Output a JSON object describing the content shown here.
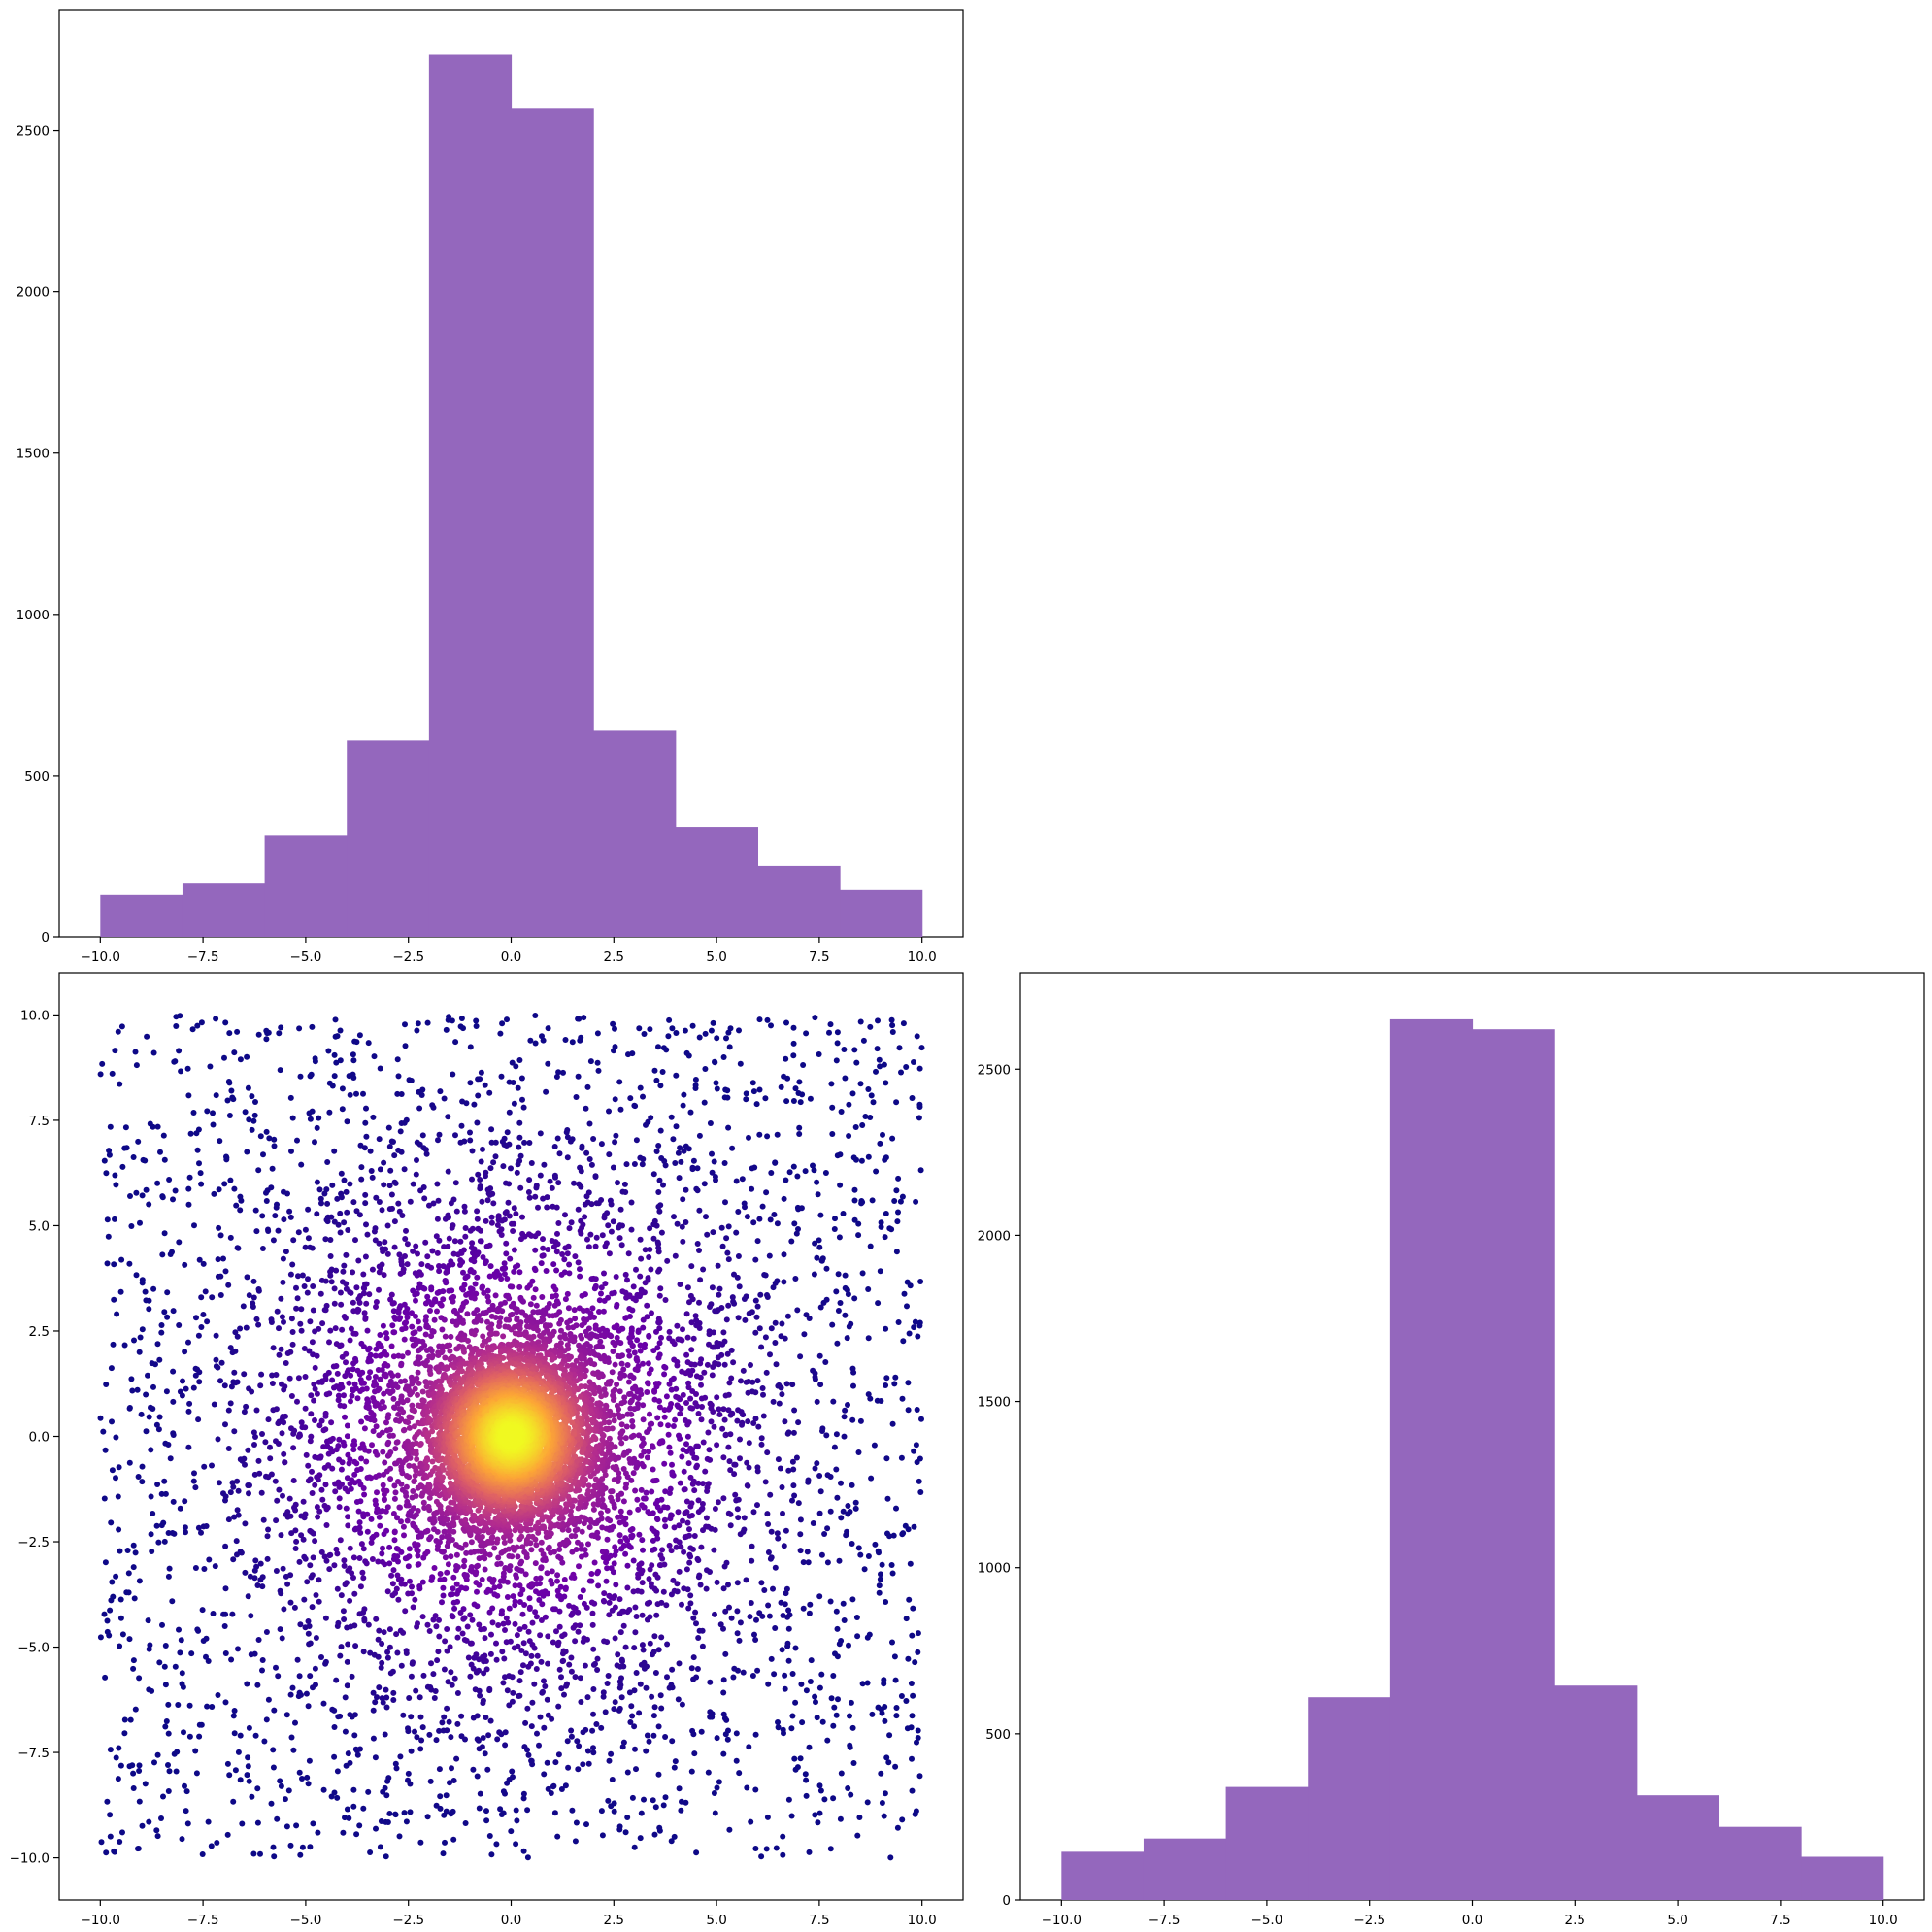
{
  "chart_data": [
    {
      "id": "hist_x",
      "type": "bar",
      "title": "",
      "xlabel": "",
      "ylabel": "",
      "bin_edges": [
        -10,
        -8,
        -6,
        -4,
        -2,
        0,
        2,
        4,
        6,
        8,
        10
      ],
      "values": [
        130,
        165,
        315,
        610,
        2735,
        2570,
        640,
        340,
        220,
        145
      ],
      "xlim": [
        -11,
        11
      ],
      "ylim": [
        0,
        2875
      ],
      "xticks": [
        -10,
        -7.5,
        -5,
        -2.5,
        0,
        2.5,
        5,
        7.5,
        10
      ],
      "xtick_labels": [
        "−10.0",
        "−7.5",
        "−5.0",
        "−2.5",
        "0.0",
        "2.5",
        "5.0",
        "7.5",
        "10.0"
      ],
      "yticks": [
        0,
        500,
        1000,
        1500,
        2000,
        2500
      ],
      "ytick_labels": [
        "0",
        "500",
        "1000",
        "1500",
        "2000",
        "2500"
      ],
      "color": "#9467bd",
      "grid": false
    },
    {
      "id": "scatter_xy",
      "type": "scatter",
      "title": "",
      "xlabel": "",
      "ylabel": "",
      "n_points": 10000,
      "distribution": "dense center peak at (0, 0) with heavy tails, uniform sparse background",
      "center": [
        0,
        0
      ],
      "xlim": [
        -11,
        11
      ],
      "ylim": [
        -11,
        11
      ],
      "xticks": [
        -10,
        -7.5,
        -5,
        -2.5,
        0,
        2.5,
        5,
        7.5,
        10
      ],
      "xtick_labels": [
        "−10.0",
        "−7.5",
        "−5.0",
        "−2.5",
        "0.0",
        "2.5",
        "5.0",
        "7.5",
        "10.0"
      ],
      "yticks": [
        -10,
        -7.5,
        -5,
        -2.5,
        0,
        2.5,
        5,
        7.5,
        10
      ],
      "ytick_labels": [
        "−10.0",
        "−7.5",
        "−5.0",
        "−2.5",
        "0.0",
        "2.5",
        "5.0",
        "7.5",
        "10.0"
      ],
      "colormap": "plasma",
      "color_by": "density",
      "colormap_stops": [
        "#0d0887",
        "#6a00a8",
        "#b12a90",
        "#e16462",
        "#fca636",
        "#f0f921"
      ],
      "grid": false
    },
    {
      "id": "hist_y",
      "type": "bar",
      "title": "",
      "xlabel": "",
      "ylabel": "",
      "bin_edges": [
        -10,
        -8,
        -6,
        -4,
        -2,
        0,
        2,
        4,
        6,
        8,
        10
      ],
      "values": [
        145,
        185,
        340,
        610,
        2650,
        2620,
        645,
        315,
        220,
        130
      ],
      "xlim": [
        -11,
        11
      ],
      "ylim": [
        0,
        2790
      ],
      "xticks": [
        -10,
        -7.5,
        -5,
        -2.5,
        0,
        2.5,
        5,
        7.5,
        10
      ],
      "xtick_labels": [
        "−10.0",
        "−7.5",
        "−5.0",
        "−2.5",
        "0.0",
        "2.5",
        "5.0",
        "7.5",
        "10.0"
      ],
      "yticks": [
        0,
        500,
        1000,
        1500,
        2000,
        2500
      ],
      "ytick_labels": [
        "0",
        "500",
        "1000",
        "1500",
        "2000",
        "2500"
      ],
      "color": "#9467bd",
      "grid": false
    }
  ]
}
